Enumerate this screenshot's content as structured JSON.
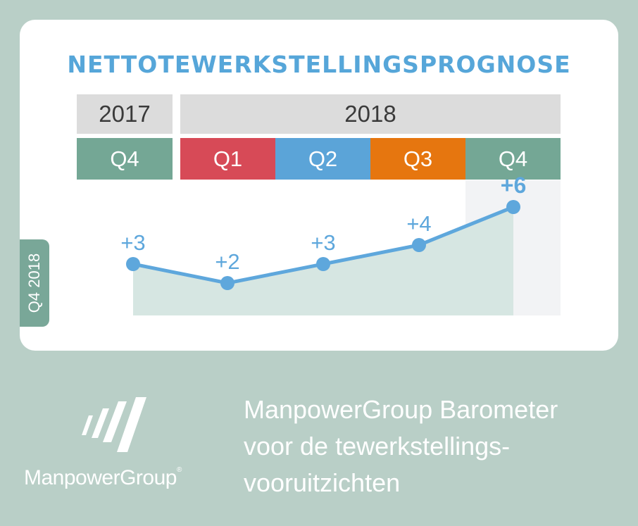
{
  "chart_data": {
    "type": "line",
    "title": "NETTOTEWERKSTELLINGSPROGNOSE",
    "years": [
      {
        "label": "2017",
        "quarters": 1
      },
      {
        "label": "2018",
        "quarters": 4
      }
    ],
    "categories": [
      "Q4",
      "Q1",
      "Q2",
      "Q3",
      "Q4"
    ],
    "category_colors": [
      "#74a795",
      "#d74a57",
      "#5ba4d8",
      "#e6760f",
      "#74a795"
    ],
    "values": [
      3,
      2,
      3,
      4,
      6
    ],
    "labels": [
      "+3",
      "+2",
      "+3",
      "+4",
      "+6"
    ],
    "highlight_index": 4,
    "line_color": "#5ea7dc",
    "fill_color": "#d6e6e2"
  },
  "side_tab": "Q4 2018",
  "logo": {
    "name": "ManpowerGroup",
    "mark": "®"
  },
  "tagline": [
    "ManpowerGroup Barometer",
    "voor de tewerkstellings-",
    "vooruitzichten"
  ]
}
